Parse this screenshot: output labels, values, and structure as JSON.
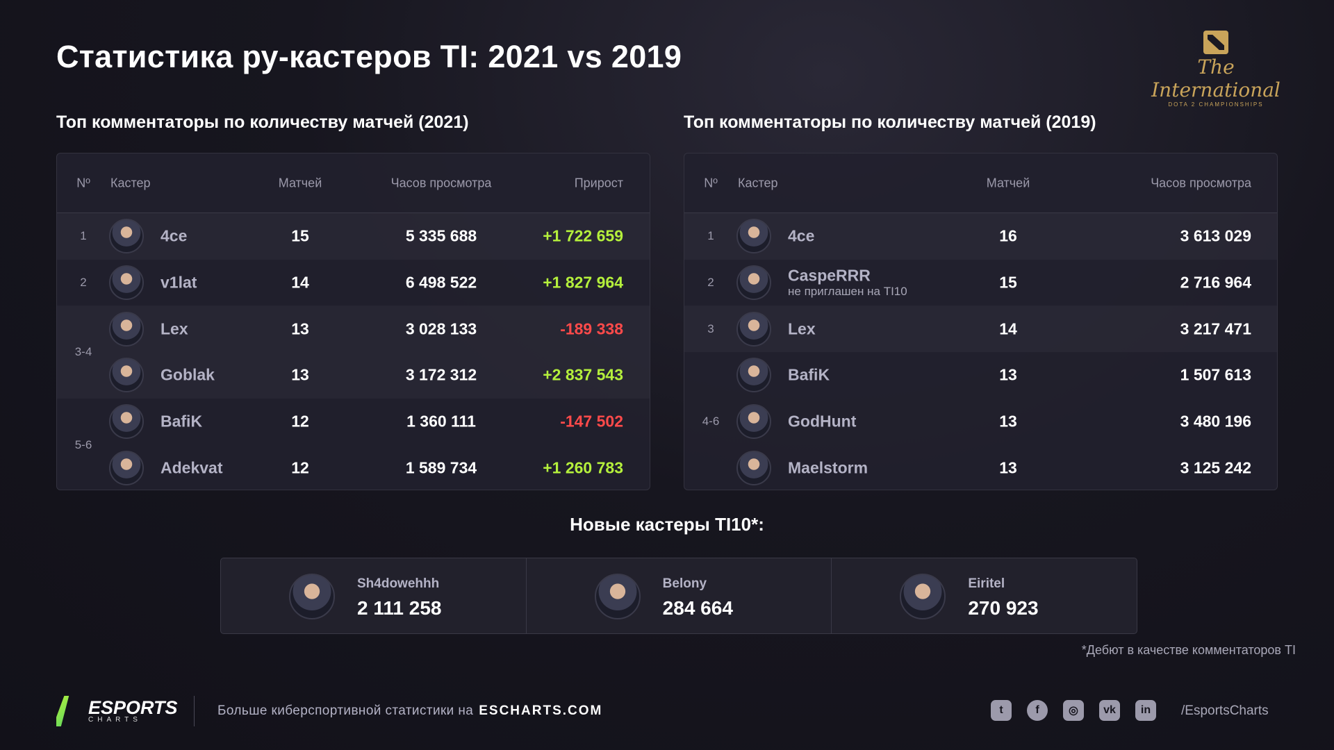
{
  "title": "Статистика ру-кастеров TI: 2021 vs 2019",
  "logo": {
    "text": "The International",
    "sub": "DOTA 2 CHAMPIONSHIPS"
  },
  "t2021": {
    "subtitle": "Топ комментаторы по количеству матчей (2021)",
    "headers": {
      "n": "Nº",
      "caster": "Кастер",
      "matches": "Матчей",
      "hours": "Часов просмотра",
      "growth": "Прирост"
    },
    "rank_labels": [
      {
        "label": "1",
        "rows": [
          0
        ]
      },
      {
        "label": "2",
        "rows": [
          1
        ]
      },
      {
        "label": "3-4",
        "rows": [
          2,
          3
        ]
      },
      {
        "label": "5-6",
        "rows": [
          4,
          5
        ]
      }
    ],
    "rows": [
      {
        "name": "4ce",
        "matches": "15",
        "hours": "5 335 688",
        "growth": "+1 722 659",
        "trend": "pos"
      },
      {
        "name": "v1lat",
        "matches": "14",
        "hours": "6 498 522",
        "growth": "+1 827 964",
        "trend": "pos"
      },
      {
        "name": "Lex",
        "matches": "13",
        "hours": "3 028 133",
        "growth": "-189 338",
        "trend": "neg"
      },
      {
        "name": "Goblak",
        "matches": "13",
        "hours": "3 172 312",
        "growth": "+2 837 543",
        "trend": "pos"
      },
      {
        "name": "BafiK",
        "matches": "12",
        "hours": "1 360 111",
        "growth": "-147 502",
        "trend": "neg"
      },
      {
        "name": "Adekvat",
        "matches": "12",
        "hours": "1 589 734",
        "growth": "+1 260 783",
        "trend": "pos"
      }
    ]
  },
  "t2019": {
    "subtitle": "Топ комментаторы по количеству матчей (2019)",
    "headers": {
      "n": "Nº",
      "caster": "Кастер",
      "matches": "Матчей",
      "hours": "Часов просмотра"
    },
    "rank_labels": [
      {
        "label": "1",
        "rows": [
          0
        ]
      },
      {
        "label": "2",
        "rows": [
          1
        ]
      },
      {
        "label": "3",
        "rows": [
          2
        ]
      },
      {
        "label": "4-6",
        "rows": [
          3,
          4,
          5
        ]
      }
    ],
    "rows": [
      {
        "name": "4ce",
        "matches": "16",
        "hours": "3 613 029"
      },
      {
        "name": "CaspeRRR",
        "note": "не приглашен на TI10",
        "matches": "15",
        "hours": "2 716 964"
      },
      {
        "name": "Lex",
        "matches": "14",
        "hours": "3 217 471"
      },
      {
        "name": "BafiK",
        "matches": "13",
        "hours": "1 507 613"
      },
      {
        "name": "GodHunt",
        "matches": "13",
        "hours": "3 480 196"
      },
      {
        "name": "Maelstorm",
        "matches": "13",
        "hours": "3 125 242"
      }
    ]
  },
  "new_casters": {
    "title": "Новые кастеры TI10*:",
    "items": [
      {
        "name": "Sh4dowehhh",
        "value": "2 111 258"
      },
      {
        "name": "Belony",
        "value": "284 664"
      },
      {
        "name": "Eiritel",
        "value": "270 923"
      }
    ],
    "footnote": "*Дебют в качестве комментаторов TI"
  },
  "footer": {
    "brand": "ESPORTS",
    "brand_sub": "CHARTS",
    "more": "Больше киберспортивной статистики на",
    "site": "ESCHARTS.COM",
    "social": [
      "twitter",
      "facebook",
      "instagram",
      "vk",
      "linkedin"
    ],
    "social_glyphs": [
      "t",
      "f",
      "◎",
      "vk",
      "in"
    ],
    "handle": "/EsportsCharts"
  },
  "colors": {
    "positive": "#b5f03c",
    "negative": "#ff4a4a",
    "background": "#17161f"
  }
}
